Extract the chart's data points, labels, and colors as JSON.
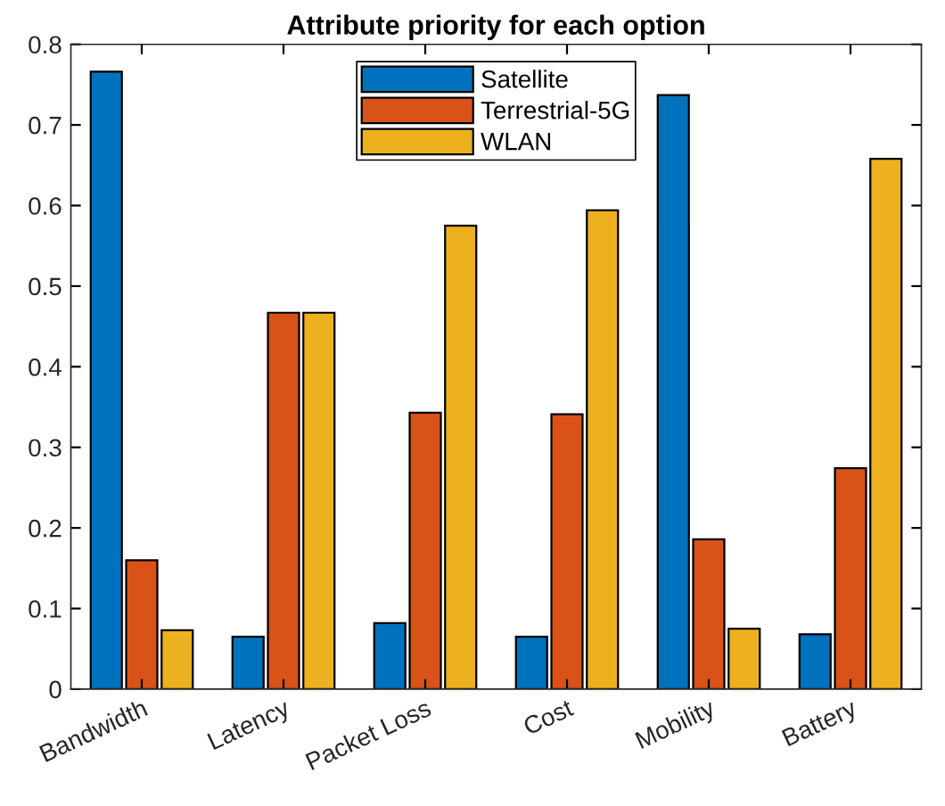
{
  "chart_data": {
    "type": "bar",
    "title": "Attribute priority for each option",
    "categories": [
      "Bandwidth",
      "Latency",
      "Packet Loss",
      "Cost",
      "Mobility",
      "Battery"
    ],
    "series": [
      {
        "name": "Satellite",
        "color": "#0072bd",
        "values": [
          0.766,
          0.065,
          0.082,
          0.065,
          0.737,
          0.068
        ]
      },
      {
        "name": "Terrestrial-5G",
        "color": "#d95319",
        "values": [
          0.16,
          0.467,
          0.343,
          0.341,
          0.186,
          0.274
        ]
      },
      {
        "name": "WLAN",
        "color": "#edb120",
        "values": [
          0.073,
          0.467,
          0.575,
          0.594,
          0.075,
          0.658
        ]
      }
    ],
    "ylim": [
      0,
      0.8
    ],
    "yticks": [
      0,
      0.1,
      0.2,
      0.3,
      0.4,
      0.5,
      0.6,
      0.7,
      0.8
    ],
    "grid": false,
    "legend": "top"
  }
}
